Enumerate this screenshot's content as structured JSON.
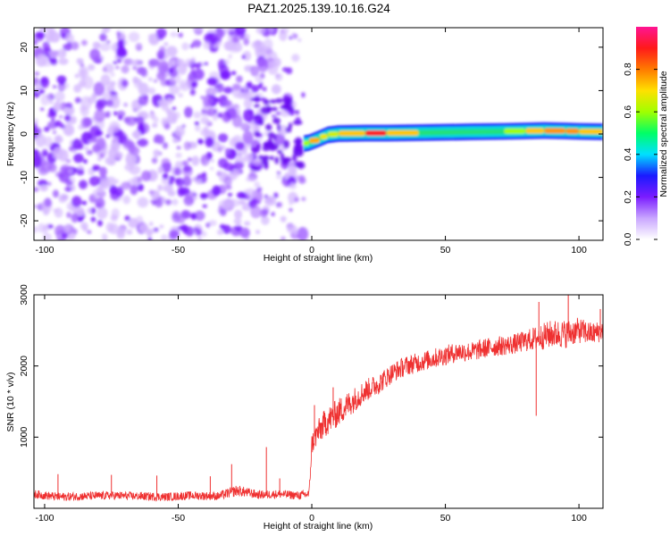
{
  "figure_title": "PAZ1.2025.139.10.16.G24",
  "chart_data": [
    {
      "type": "heatmap",
      "xlabel": "Height of straight line (km)",
      "ylabel": "Frequency (Hz)",
      "xlim": [
        -104,
        109
      ],
      "ylim": [
        -24.5,
        24.5
      ],
      "x_ticks": [
        -100,
        -50,
        0,
        50,
        100
      ],
      "y_ticks": [
        -20,
        -10,
        0,
        10,
        20
      ],
      "x_tick_labels": [
        "-100",
        "-50",
        "0",
        "50",
        "100"
      ],
      "y_tick_labels": [
        "-20",
        "-10",
        "0",
        "10",
        "20"
      ],
      "colorbar": {
        "label": "Normalized spectral amplitude",
        "range": [
          0,
          1
        ],
        "ticks": [
          0.0,
          0.2,
          0.4,
          0.6,
          0.8
        ],
        "tick_labels": [
          "0.0",
          "0.2",
          "0.4",
          "0.6",
          "0.8"
        ],
        "colors": [
          "#ffffff",
          "#c9a6ff",
          "#7a1cff",
          "#1a1aff",
          "#00e0ff",
          "#00ff66",
          "#a0ff00",
          "#ffe000",
          "#ff7a00",
          "#ff1a1a",
          "#ff1493"
        ]
      },
      "noise_region": {
        "x_range": [
          -104,
          -3
        ],
        "f_range": [
          -24.5,
          24.5
        ],
        "peak_amplitude": 0.2
      },
      "signal_trace": [
        {
          "x": -3,
          "f": -2.2,
          "amplitude": 0.3
        },
        {
          "x": -1,
          "f": -2.0,
          "amplitude": 0.9
        },
        {
          "x": 3,
          "f": -1.0,
          "amplitude": 0.6
        },
        {
          "x": 6,
          "f": -0.2,
          "amplitude": 0.75
        },
        {
          "x": 10,
          "f": 0.1,
          "amplitude": 0.55
        },
        {
          "x": 20,
          "f": 0.2,
          "amplitude": 0.9
        },
        {
          "x": 28,
          "f": 0.2,
          "amplitude": 0.9
        },
        {
          "x": 40,
          "f": 0.3,
          "amplitude": 0.55
        },
        {
          "x": 50,
          "f": 0.4,
          "amplitude": 0.5
        },
        {
          "x": 60,
          "f": 0.5,
          "amplitude": 0.55
        },
        {
          "x": 72,
          "f": 0.6,
          "amplitude": 0.6
        },
        {
          "x": 80,
          "f": 0.7,
          "amplitude": 0.6
        },
        {
          "x": 87,
          "f": 0.8,
          "amplitude": 0.85
        },
        {
          "x": 95,
          "f": 0.7,
          "amplitude": 0.7
        },
        {
          "x": 100,
          "f": 0.6,
          "amplitude": 0.85
        },
        {
          "x": 109,
          "f": 0.5,
          "amplitude": 0.6
        }
      ]
    },
    {
      "type": "line",
      "xlabel": "Height of straight line (km)",
      "ylabel": "SNR (10 * v/v)",
      "xlim": [
        -104,
        109
      ],
      "ylim": [
        0,
        3000
      ],
      "x_ticks": [
        -100,
        -50,
        0,
        50,
        100
      ],
      "y_ticks": [
        1000,
        2000,
        3000
      ],
      "x_tick_labels": [
        "-100",
        "-50",
        "0",
        "50",
        "100"
      ],
      "y_tick_labels": [
        "1000",
        "2000",
        "3000"
      ],
      "color": "#ef3030",
      "x": [
        -104,
        -95,
        -85,
        -75,
        -65,
        -55,
        -45,
        -35,
        -28,
        -20,
        -12,
        -5,
        -1,
        0,
        2,
        5,
        10,
        15,
        20,
        25,
        30,
        35,
        40,
        45,
        50,
        55,
        60,
        65,
        70,
        75,
        80,
        85,
        90,
        95,
        100,
        105,
        109
      ],
      "y": [
        200,
        160,
        170,
        180,
        170,
        160,
        180,
        170,
        250,
        190,
        200,
        180,
        200,
        900,
        1050,
        1200,
        1350,
        1500,
        1650,
        1750,
        1900,
        2000,
        2050,
        2100,
        2150,
        2200,
        2200,
        2250,
        2280,
        2300,
        2350,
        2400,
        2450,
        2450,
        2500,
        2450,
        2500
      ],
      "noise_amplitude": [
        60,
        60,
        60,
        60,
        60,
        60,
        60,
        60,
        80,
        60,
        60,
        60,
        70,
        150,
        180,
        200,
        200,
        180,
        160,
        150,
        140,
        140,
        140,
        140,
        140,
        140,
        140,
        140,
        140,
        140,
        150,
        180,
        200,
        200,
        180,
        160,
        150
      ],
      "spikes": [
        {
          "x": -95,
          "y": 480
        },
        {
          "x": -75,
          "y": 470
        },
        {
          "x": -58,
          "y": 460
        },
        {
          "x": -38,
          "y": 450
        },
        {
          "x": -30,
          "y": 620
        },
        {
          "x": -17,
          "y": 860
        },
        {
          "x": -12,
          "y": 420
        },
        {
          "x": 1,
          "y": 1450
        },
        {
          "x": 8,
          "y": 1700
        },
        {
          "x": 84,
          "y": 1300
        },
        {
          "x": 85,
          "y": 2900
        },
        {
          "x": 96,
          "y": 3000
        },
        {
          "x": 108,
          "y": 2800
        }
      ]
    }
  ]
}
